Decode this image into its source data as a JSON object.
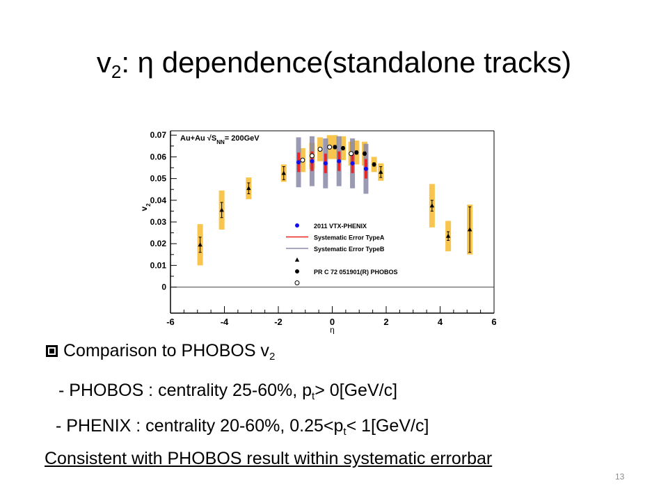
{
  "slide": {
    "title_pre": "v",
    "title_sub": "2",
    "title_post": ": η dependence(standalone tracks)",
    "bullet_text": "Comparison to PHOBOS v",
    "bullet_sub": "2",
    "line1_pre": "- PHOBOS : centrality 25-60%, p",
    "line1_sub": "t",
    "line1_post": "> 0[GeV/c]",
    "line2_pre": "- PHENIX   : centrality 20-60%, 0.25<p",
    "line2_sub": "t",
    "line2_post": "< 1[GeV/c]",
    "conclusion": "Consistent with PHOBOS result within systematic errorbar",
    "page_number": "13"
  },
  "chart_data": {
    "type": "scatter",
    "annotation": {
      "text_pre": "Au+Au √S",
      "text_sub": "NN",
      "text_post": "= 200GeV"
    },
    "xlabel": "η",
    "ylabel_pre": "v",
    "ylabel_sub": "2",
    "xlim": [
      -6,
      6
    ],
    "ylim": [
      -0.012,
      0.072
    ],
    "xticks": [
      -6,
      -4,
      -2,
      0,
      2,
      4,
      6
    ],
    "yticks": [
      0,
      0.01,
      0.02,
      0.03,
      0.04,
      0.05,
      0.06,
      0.07
    ],
    "ytick_labels": [
      "0",
      "0.01",
      "0.02",
      "0.03",
      "0.04",
      "0.05",
      "0.06",
      "0.07"
    ],
    "reference_line_y": 0,
    "colors": {
      "vtx": "#1010ee",
      "typeA": "#ee2020",
      "typeB": "#8888a8",
      "phobos_sys": "#f7c040"
    },
    "legend": [
      {
        "marker": "blue-dot",
        "label": "2011 VTX-PHENIX"
      },
      {
        "marker": "red-line",
        "label": "Systematic Error TypeA"
      },
      {
        "marker": "gray-line",
        "label": "Systematic Error TypeB"
      },
      {
        "marker": "triangle",
        "label": ""
      },
      {
        "marker": "filled-circle",
        "label": "PR C 72 051901(R) PHOBOS"
      },
      {
        "marker": "open-circle",
        "label": ""
      }
    ],
    "series": [
      {
        "name": "2011 VTX-PHENIX",
        "x": [
          -1.25,
          -0.75,
          -0.25,
          0.25,
          0.75,
          1.25
        ],
        "y": [
          0.0575,
          0.058,
          0.057,
          0.058,
          0.057,
          0.0545
        ],
        "stat_err": [
          0.0005,
          0.0005,
          0.0005,
          0.0005,
          0.0005,
          0.0005
        ],
        "sysA_err": [
          0.0045,
          0.0045,
          0.0045,
          0.0045,
          0.0045,
          0.0045
        ],
        "sysB_err": [
          0.0115,
          0.0115,
          0.0115,
          0.0115,
          0.0115,
          0.0115
        ]
      },
      {
        "name": "PHOBOS triangles",
        "x": [
          -4.9,
          -4.1,
          -3.1,
          -1.8,
          1.8,
          3.7,
          4.3,
          5.1
        ],
        "y": [
          0.0195,
          0.0355,
          0.0455,
          0.0525,
          0.053,
          0.0375,
          0.0235,
          0.0265
        ],
        "stat_err": [
          0.0035,
          0.0035,
          0.0025,
          0.003,
          0.0025,
          0.0025,
          0.002,
          0.0105
        ],
        "sys_err": [
          0.0095,
          0.009,
          0.005,
          0.004,
          0.004,
          0.01,
          0.007,
          0.0115
        ]
      },
      {
        "name": "PHOBOS filled circles",
        "x": [
          0.1,
          0.4,
          0.9,
          1.2,
          1.55
        ],
        "y": [
          0.0645,
          0.064,
          0.062,
          0.0615,
          0.0565
        ],
        "stat_err": [
          0.0008,
          0.0008,
          0.0008,
          0.0008,
          0.0008
        ],
        "sys_err": [
          0.0055,
          0.0055,
          0.0055,
          0.0055,
          0.0035
        ]
      },
      {
        "name": "PHOBOS open circles",
        "x": [
          -1.1,
          -0.75,
          -0.45,
          -0.1,
          0.7
        ],
        "y": [
          0.0585,
          0.0605,
          0.0635,
          0.0645,
          0.0615
        ],
        "stat_err": [
          0.0008,
          0.0008,
          0.0008,
          0.0008,
          0.0008
        ],
        "sys_err": [
          0.0055,
          0.006,
          0.0055,
          0.0055,
          0.0055
        ]
      }
    ]
  }
}
